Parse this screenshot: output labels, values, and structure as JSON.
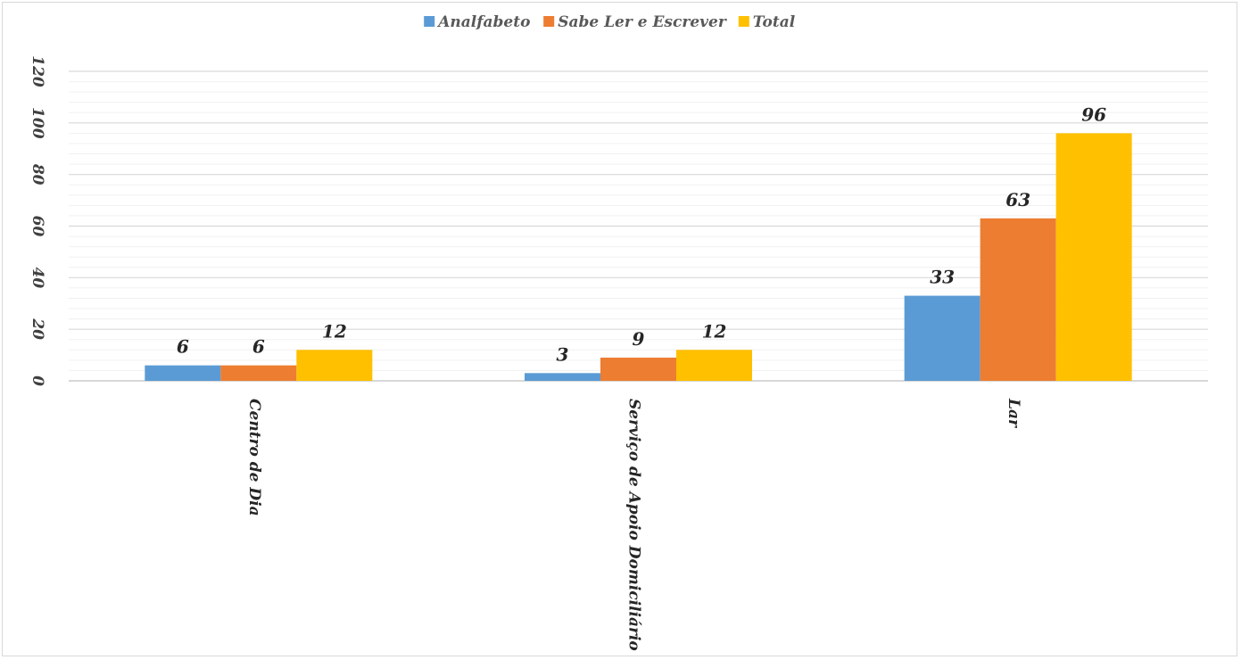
{
  "chart_data": {
    "type": "bar",
    "title": "",
    "xlabel": "",
    "ylabel": "",
    "categories": [
      "Centro de Dia",
      "Serviço de Apoio Domiciliário",
      "Lar"
    ],
    "series": [
      {
        "name": "Analfabeto",
        "color": "#5b9bd5",
        "values": [
          6,
          3,
          33
        ]
      },
      {
        "name": "Sabe Ler e Escrever",
        "color": "#ed7d31",
        "values": [
          6,
          9,
          63
        ]
      },
      {
        "name": "Total",
        "color": "#ffc000",
        "values": [
          12,
          12,
          96
        ]
      }
    ],
    "ylim": [
      0,
      120
    ],
    "yticks": [
      "0",
      "20",
      "40",
      "60",
      "80",
      "100",
      "120"
    ],
    "grid": true,
    "legend": "top-center"
  }
}
